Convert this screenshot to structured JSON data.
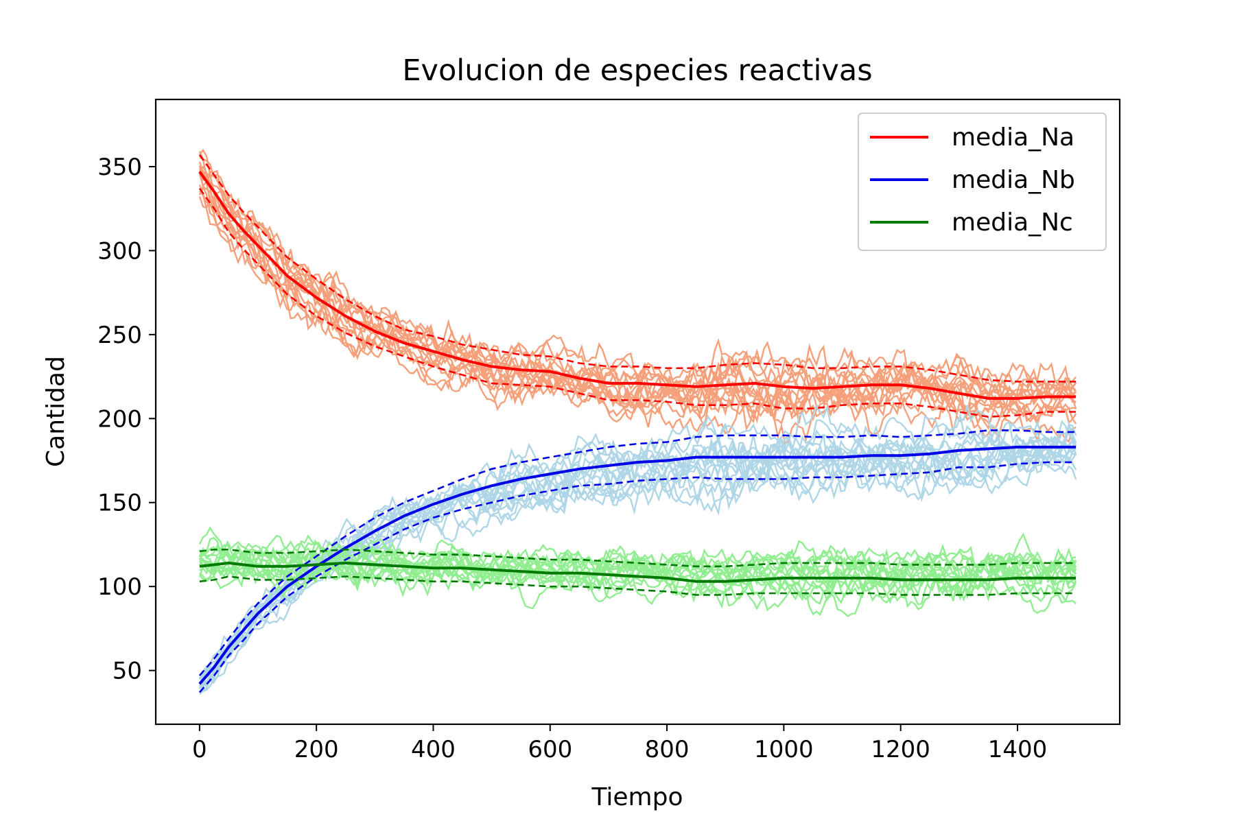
{
  "chart_data": {
    "type": "line",
    "title": "Evolucion de especies reactivas",
    "xlabel": "Tiempo",
    "ylabel": "Cantidad",
    "xlim": [
      -75,
      1575
    ],
    "ylim": [
      18,
      390
    ],
    "xticks": [
      0,
      200,
      400,
      600,
      800,
      1000,
      1200,
      1400
    ],
    "yticks": [
      50,
      100,
      150,
      200,
      250,
      300,
      350
    ],
    "grid": false,
    "legend_position": "top-right",
    "legend": [
      "media_Na",
      "media_Nb",
      "media_Nc"
    ],
    "realizations_per_species": 15,
    "x": [
      0,
      25,
      50,
      75,
      100,
      150,
      200,
      250,
      300,
      350,
      400,
      450,
      500,
      550,
      600,
      650,
      700,
      750,
      800,
      850,
      900,
      950,
      1000,
      1050,
      1100,
      1150,
      1200,
      1250,
      1300,
      1350,
      1400,
      1450,
      1500
    ],
    "series": [
      {
        "name": "media_Na",
        "color": "#ff0000",
        "realization_color": "#f5a07a",
        "mean": [
          347,
          335,
          322,
          312,
          303,
          285,
          272,
          261,
          252,
          245,
          240,
          235,
          231,
          229,
          228,
          224,
          221,
          221,
          220,
          219,
          220,
          221,
          219,
          218,
          219,
          220,
          220,
          218,
          215,
          212,
          212,
          213,
          213
        ],
        "upper": [
          357,
          345,
          333,
          323,
          314,
          296,
          283,
          271,
          261,
          253,
          249,
          244,
          241,
          238,
          237,
          233,
          231,
          231,
          230,
          230,
          232,
          233,
          232,
          230,
          230,
          231,
          231,
          229,
          226,
          223,
          222,
          222,
          222
        ],
        "lower": [
          337,
          325,
          311,
          301,
          292,
          274,
          261,
          251,
          243,
          237,
          231,
          226,
          221,
          220,
          219,
          215,
          211,
          211,
          210,
          208,
          208,
          209,
          206,
          206,
          208,
          209,
          209,
          207,
          204,
          201,
          202,
          204,
          204
        ]
      },
      {
        "name": "media_Nb",
        "color": "#0000e6",
        "realization_color": "#aed6e6",
        "mean": [
          42,
          52,
          64,
          74,
          84,
          100,
          112,
          123,
          133,
          142,
          149,
          155,
          160,
          164,
          167,
          170,
          172,
          174,
          175,
          177,
          177,
          177,
          177,
          177,
          177,
          178,
          178,
          179,
          181,
          182,
          183,
          183,
          183
        ],
        "upper": [
          47,
          57,
          69,
          80,
          90,
          106,
          118,
          130,
          141,
          150,
          157,
          164,
          170,
          174,
          177,
          180,
          183,
          185,
          186,
          189,
          190,
          190,
          190,
          189,
          189,
          190,
          189,
          190,
          191,
          193,
          193,
          192,
          192
        ],
        "lower": [
          37,
          47,
          59,
          68,
          78,
          94,
          106,
          116,
          125,
          134,
          141,
          146,
          150,
          154,
          157,
          160,
          161,
          163,
          164,
          165,
          164,
          164,
          164,
          165,
          165,
          166,
          167,
          168,
          171,
          171,
          173,
          174,
          174
        ]
      },
      {
        "name": "media_Nc",
        "color": "#007a00",
        "realization_color": "#90ee90",
        "mean": [
          112,
          113,
          114,
          113,
          112,
          112,
          113,
          114,
          113,
          112,
          111,
          111,
          110,
          109,
          108,
          108,
          107,
          106,
          105,
          103,
          103,
          104,
          105,
          105,
          105,
          105,
          104,
          104,
          104,
          104,
          105,
          105,
          105
        ],
        "upper": [
          121,
          122,
          122,
          121,
          120,
          120,
          121,
          122,
          121,
          120,
          119,
          119,
          118,
          117,
          116,
          116,
          115,
          114,
          113,
          112,
          112,
          113,
          114,
          114,
          114,
          114,
          113,
          113,
          113,
          113,
          114,
          114,
          114
        ],
        "lower": [
          103,
          104,
          106,
          105,
          104,
          104,
          105,
          106,
          105,
          104,
          103,
          103,
          102,
          101,
          100,
          100,
          99,
          98,
          97,
          95,
          95,
          96,
          96,
          96,
          96,
          96,
          95,
          95,
          95,
          95,
          96,
          96,
          96
        ]
      }
    ]
  }
}
